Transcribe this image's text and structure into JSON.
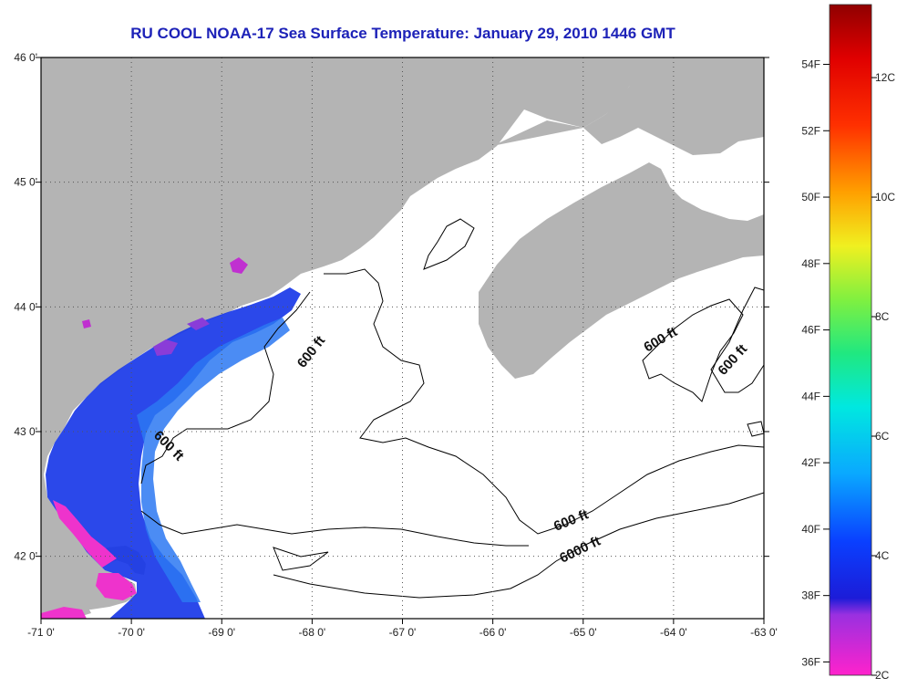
{
  "title": "RU COOL  NOAA-17  Sea Surface Temperature:  January 29, 2010 1446 GMT",
  "map": {
    "lon_ticks": [
      "-71 0'",
      "-70 0'",
      "-69 0'",
      "-68 0'",
      "-67 0'",
      "-66 0'",
      "-65 0'",
      "-64 0'",
      "-63 0'"
    ],
    "lat_ticks": [
      "46 0'",
      "45 0'",
      "44 0'",
      "43 0'",
      "42 0'"
    ],
    "lon_range": [
      -71,
      -63
    ],
    "lat_range": [
      41.5,
      46
    ],
    "colors": {
      "land": "#b4b4b4",
      "ocean": "#ffffff",
      "grid": "#555555"
    },
    "contours": [
      {
        "label": "600 ft"
      },
      {
        "label": "600 ft"
      },
      {
        "label": "600 ft"
      },
      {
        "label": "600 ft"
      },
      {
        "label": "600 ft"
      },
      {
        "label": "6000 ft"
      }
    ]
  },
  "colorbar": {
    "fahrenheit": [
      "54F",
      "52F",
      "50F",
      "48F",
      "46F",
      "44F",
      "42F",
      "40F",
      "38F",
      "36F"
    ],
    "celsius": [
      "12C",
      "10C",
      "8C",
      "6C",
      "4C",
      "2C"
    ]
  }
}
